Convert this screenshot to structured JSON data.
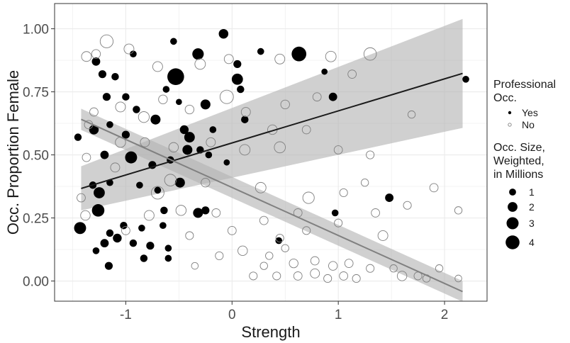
{
  "chart_data": {
    "type": "scatter",
    "xlabel": "Strength",
    "ylabel": "Occ. Proportion Female",
    "xlim": [
      -1.67,
      2.4
    ],
    "ylim": [
      -0.08,
      1.1
    ],
    "x_ticks": [
      -1,
      0,
      1,
      2
    ],
    "x_tick_labels": [
      "-1",
      "0",
      "1",
      "2"
    ],
    "y_ticks": [
      0,
      0.25,
      0.5,
      0.75,
      1
    ],
    "y_tick_labels": [
      "0.00",
      "0.25",
      "0.50",
      "0.75",
      "1.00"
    ],
    "minor_x_ticks": [
      -1.5,
      -0.5,
      0.5,
      1.5
    ],
    "minor_y_ticks": [
      0.125,
      0.375,
      0.625,
      0.875
    ],
    "grid": true,
    "legend_position": "right",
    "legend": {
      "group_title_line1": "Professional",
      "group_title_line2": "Occ.",
      "groups": [
        {
          "label": "Yes",
          "style": "filled"
        },
        {
          "label": "No",
          "style": "hollow"
        }
      ],
      "size_title_line1": "Occ. Size,",
      "size_title_line2": "Weighted,",
      "size_title_line3": "in Millions",
      "sizes": [
        {
          "label": "1",
          "value": 1
        },
        {
          "label": "2",
          "value": 2
        },
        {
          "label": "3",
          "value": 3
        },
        {
          "label": "4",
          "value": 4
        }
      ]
    },
    "colors": {
      "professional": "#000000",
      "non_professional": "#808080",
      "professional_line": "#1a1a1a",
      "non_professional_line": "#808080",
      "ribbon": "#b3b3b3",
      "grid": "#ebebeb",
      "panel_border": "#333333"
    },
    "fits": [
      {
        "group": "Yes",
        "x": [
          -1.42,
          2.17
        ],
        "y": [
          0.367,
          0.823
        ],
        "ci_lower": [
          0.28,
          0.607
        ],
        "ci_upper": [
          0.455,
          1.039
        ]
      },
      {
        "group": "No",
        "x": [
          -1.42,
          2.17
        ],
        "y": [
          0.641,
          -0.042
        ],
        "ci_lower": [
          0.599,
          -0.082
        ],
        "ci_upper": [
          0.683,
          0.0
        ]
      }
    ],
    "series": [
      {
        "name": "Yes",
        "points": [
          {
            "x": -1.28,
            "y": 0.87,
            "size": 0.6
          },
          {
            "x": -1.22,
            "y": 0.82,
            "size": 0.5
          },
          {
            "x": -1.1,
            "y": 0.81,
            "size": 0.4
          },
          {
            "x": -0.93,
            "y": 0.9,
            "size": 0.3
          },
          {
            "x": -0.55,
            "y": 0.95,
            "size": 0.3
          },
          {
            "x": -0.53,
            "y": 0.81,
            "size": 4.0
          },
          {
            "x": -0.32,
            "y": 0.9,
            "size": 1.5
          },
          {
            "x": -0.08,
            "y": 0.98,
            "size": 0.9
          },
          {
            "x": 0.05,
            "y": 0.86,
            "size": 0.5
          },
          {
            "x": 0.27,
            "y": 0.91,
            "size": 0.3
          },
          {
            "x": 0.63,
            "y": 0.9,
            "size": 2.9
          },
          {
            "x": 0.87,
            "y": 0.83,
            "size": 0.2
          },
          {
            "x": -1.18,
            "y": 0.73,
            "size": 0.5
          },
          {
            "x": -1.0,
            "y": 0.73,
            "size": 0.4
          },
          {
            "x": -0.62,
            "y": 0.76,
            "size": 0.3
          },
          {
            "x": -0.5,
            "y": 0.71,
            "size": 0.2
          },
          {
            "x": -0.25,
            "y": 0.7,
            "size": 1.0
          },
          {
            "x": 0.05,
            "y": 0.8,
            "size": 1.4
          },
          {
            "x": 0.08,
            "y": 0.76,
            "size": 0.4
          },
          {
            "x": 0.95,
            "y": 0.73,
            "size": 0.6
          },
          {
            "x": -1.45,
            "y": 0.57,
            "size": 0.4
          },
          {
            "x": -1.3,
            "y": 0.6,
            "size": 0.9
          },
          {
            "x": -1.15,
            "y": 0.62,
            "size": 0.3
          },
          {
            "x": -1.0,
            "y": 0.58,
            "size": 0.5
          },
          {
            "x": -0.9,
            "y": 0.68,
            "size": 0.4
          },
          {
            "x": -0.72,
            "y": 0.64,
            "size": 1.0
          },
          {
            "x": -0.45,
            "y": 0.6,
            "size": 0.7
          },
          {
            "x": -0.4,
            "y": 0.57,
            "size": 1.2
          },
          {
            "x": -0.18,
            "y": 0.6,
            "size": 0.3
          },
          {
            "x": 0.12,
            "y": 0.64,
            "size": 0.4
          },
          {
            "x": -1.2,
            "y": 0.5,
            "size": 0.6
          },
          {
            "x": -0.95,
            "y": 0.49,
            "size": 1.7
          },
          {
            "x": -0.75,
            "y": 0.46,
            "size": 0.5
          },
          {
            "x": -0.58,
            "y": 0.48,
            "size": 0.4
          },
          {
            "x": -0.42,
            "y": 0.52,
            "size": 1.0
          },
          {
            "x": -0.3,
            "y": 0.52,
            "size": 0.4
          },
          {
            "x": -0.22,
            "y": 0.5,
            "size": 0.3
          },
          {
            "x": -0.05,
            "y": 0.47,
            "size": 0.2
          },
          {
            "x": -1.31,
            "y": 0.38,
            "size": 0.4
          },
          {
            "x": -1.25,
            "y": 0.35,
            "size": 1.4
          },
          {
            "x": -1.15,
            "y": 0.39,
            "size": 0.3
          },
          {
            "x": -0.87,
            "y": 0.38,
            "size": 0.3
          },
          {
            "x": -0.7,
            "y": 0.36,
            "size": 0.3
          },
          {
            "x": -0.49,
            "y": 0.39,
            "size": 1.0
          },
          {
            "x": -1.26,
            "y": 0.28,
            "size": 1.9
          },
          {
            "x": -0.64,
            "y": 0.28,
            "size": 0.4
          },
          {
            "x": -0.32,
            "y": 0.27,
            "size": 1.0
          },
          {
            "x": -0.25,
            "y": 0.28,
            "size": 0.5
          },
          {
            "x": -1.43,
            "y": 0.21,
            "size": 1.7
          },
          {
            "x": -1.15,
            "y": 0.19,
            "size": 0.4
          },
          {
            "x": -1.02,
            "y": 0.22,
            "size": 0.4
          },
          {
            "x": -0.85,
            "y": 0.21,
            "size": 0.3
          },
          {
            "x": -0.65,
            "y": 0.22,
            "size": 0.3
          },
          {
            "x": -1.2,
            "y": 0.15,
            "size": 0.6
          },
          {
            "x": -1.08,
            "y": 0.17,
            "size": 0.7
          },
          {
            "x": -0.93,
            "y": 0.15,
            "size": 0.4
          },
          {
            "x": -0.77,
            "y": 0.14,
            "size": 0.5
          },
          {
            "x": -0.6,
            "y": 0.13,
            "size": 0.3
          },
          {
            "x": -1.28,
            "y": 0.12,
            "size": 0.3
          },
          {
            "x": -1.16,
            "y": 0.06,
            "size": 0.5
          },
          {
            "x": -0.83,
            "y": 0.09,
            "size": 0.4
          },
          {
            "x": -0.6,
            "y": 0.09,
            "size": 0.3
          },
          {
            "x": 1.48,
            "y": 0.33,
            "size": 0.6
          },
          {
            "x": 0.97,
            "y": 0.27,
            "size": 0.3
          },
          {
            "x": 0.44,
            "y": 0.16,
            "size": 0.3
          },
          {
            "x": 2.2,
            "y": 0.8,
            "size": 0.3
          }
        ]
      },
      {
        "name": "No",
        "points": [
          {
            "x": -1.18,
            "y": 0.95,
            "size": 2.1
          },
          {
            "x": -1.37,
            "y": 0.89,
            "size": 1.0
          },
          {
            "x": -1.28,
            "y": 0.9,
            "size": 0.7
          },
          {
            "x": -0.97,
            "y": 0.92,
            "size": 1.0
          },
          {
            "x": -0.7,
            "y": 0.85,
            "size": 1.0
          },
          {
            "x": -0.3,
            "y": 0.86,
            "size": 1.2
          },
          {
            "x": -0.03,
            "y": 0.88,
            "size": 0.8
          },
          {
            "x": 0.45,
            "y": 0.88,
            "size": 1.0
          },
          {
            "x": 0.93,
            "y": 0.89,
            "size": 1.2
          },
          {
            "x": 1.3,
            "y": 0.9,
            "size": 1.9
          },
          {
            "x": 1.13,
            "y": 0.82,
            "size": 0.6
          },
          {
            "x": -0.05,
            "y": 0.73,
            "size": 2.3
          },
          {
            "x": 0.13,
            "y": 0.67,
            "size": 0.8
          },
          {
            "x": 0.5,
            "y": 0.7,
            "size": 0.7
          },
          {
            "x": 0.8,
            "y": 0.73,
            "size": 0.6
          },
          {
            "x": -0.83,
            "y": 0.65,
            "size": 1.3
          },
          {
            "x": -0.65,
            "y": 0.72,
            "size": 0.7
          },
          {
            "x": 1.69,
            "y": 0.66,
            "size": 0.4
          },
          {
            "x": -1.3,
            "y": 0.67,
            "size": 0.6
          },
          {
            "x": -1.05,
            "y": 0.69,
            "size": 1.0
          },
          {
            "x": -0.4,
            "y": 0.68,
            "size": 0.7
          },
          {
            "x": -1.35,
            "y": 0.62,
            "size": 0.6
          },
          {
            "x": 0.38,
            "y": 0.6,
            "size": 0.9
          },
          {
            "x": 0.7,
            "y": 0.6,
            "size": 0.6
          },
          {
            "x": -1.05,
            "y": 0.55,
            "size": 1.1
          },
          {
            "x": -0.82,
            "y": 0.55,
            "size": 0.8
          },
          {
            "x": -0.55,
            "y": 0.53,
            "size": 0.9
          },
          {
            "x": -0.2,
            "y": 0.55,
            "size": 0.8
          },
          {
            "x": 0.12,
            "y": 0.52,
            "size": 1.2
          },
          {
            "x": 0.45,
            "y": 0.53,
            "size": 1.4
          },
          {
            "x": 1.0,
            "y": 0.52,
            "size": 0.6
          },
          {
            "x": 1.3,
            "y": 0.5,
            "size": 0.5
          },
          {
            "x": -1.37,
            "y": 0.49,
            "size": 0.6
          },
          {
            "x": -1.1,
            "y": 0.45,
            "size": 0.8
          },
          {
            "x": -0.58,
            "y": 0.4,
            "size": 1.6
          },
          {
            "x": -0.7,
            "y": 0.35,
            "size": 2.0
          },
          {
            "x": -0.25,
            "y": 0.39,
            "size": 0.7
          },
          {
            "x": 0.27,
            "y": 0.37,
            "size": 1.2
          },
          {
            "x": 0.72,
            "y": 0.33,
            "size": 1.5
          },
          {
            "x": 1.05,
            "y": 0.35,
            "size": 0.5
          },
          {
            "x": 1.25,
            "y": 0.39,
            "size": 0.4
          },
          {
            "x": 1.9,
            "y": 0.37,
            "size": 0.6
          },
          {
            "x": -1.42,
            "y": 0.33,
            "size": 0.6
          },
          {
            "x": -0.78,
            "y": 0.26,
            "size": 1.0
          },
          {
            "x": -0.48,
            "y": 0.28,
            "size": 1.1
          },
          {
            "x": -0.15,
            "y": 0.27,
            "size": 0.6
          },
          {
            "x": 0.3,
            "y": 0.24,
            "size": 0.6
          },
          {
            "x": 0.62,
            "y": 0.27,
            "size": 0.6
          },
          {
            "x": 1.0,
            "y": 0.23,
            "size": 0.5
          },
          {
            "x": 1.35,
            "y": 0.27,
            "size": 0.6
          },
          {
            "x": 1.65,
            "y": 0.3,
            "size": 0.5
          },
          {
            "x": 2.13,
            "y": 0.28,
            "size": 0.4
          },
          {
            "x": -1.38,
            "y": 0.26,
            "size": 0.9
          },
          {
            "x": -1.0,
            "y": 0.2,
            "size": 0.6
          },
          {
            "x": -0.4,
            "y": 0.18,
            "size": 0.5
          },
          {
            "x": 0.0,
            "y": 0.2,
            "size": 0.6
          },
          {
            "x": 0.45,
            "y": 0.17,
            "size": 0.5
          },
          {
            "x": 0.7,
            "y": 0.2,
            "size": 0.5
          },
          {
            "x": 1.42,
            "y": 0.18,
            "size": 1.0
          },
          {
            "x": -0.12,
            "y": 0.1,
            "size": 0.5
          },
          {
            "x": 0.1,
            "y": 0.12,
            "size": 0.9
          },
          {
            "x": 0.35,
            "y": 0.1,
            "size": 0.4
          },
          {
            "x": 0.58,
            "y": 0.07,
            "size": 0.7
          },
          {
            "x": 0.78,
            "y": 0.08,
            "size": 0.6
          },
          {
            "x": 0.95,
            "y": 0.06,
            "size": 0.7
          },
          {
            "x": 1.1,
            "y": 0.07,
            "size": 0.6
          },
          {
            "x": 1.3,
            "y": 0.05,
            "size": 0.5
          },
          {
            "x": 0.2,
            "y": 0.02,
            "size": 0.5
          },
          {
            "x": 0.42,
            "y": 0.02,
            "size": 0.5
          },
          {
            "x": 0.62,
            "y": 0.02,
            "size": 0.6
          },
          {
            "x": 0.78,
            "y": 0.03,
            "size": 0.8
          },
          {
            "x": 0.9,
            "y": 0.01,
            "size": 0.5
          },
          {
            "x": 1.05,
            "y": 0.02,
            "size": 0.6
          },
          {
            "x": 1.17,
            "y": 0.01,
            "size": 0.5
          },
          {
            "x": 1.6,
            "y": 0.02,
            "size": 0.9
          },
          {
            "x": 1.95,
            "y": 0.05,
            "size": 0.4
          },
          {
            "x": 2.13,
            "y": 0.01,
            "size": 0.3
          },
          {
            "x": 1.75,
            "y": 0.02,
            "size": 0.5
          },
          {
            "x": 1.83,
            "y": 0.01,
            "size": 0.4
          },
          {
            "x": 1.52,
            "y": 0.05,
            "size": 0.4
          },
          {
            "x": 0.3,
            "y": 0.06,
            "size": 0.4
          },
          {
            "x": -0.35,
            "y": 0.06,
            "size": 0.3
          },
          {
            "x": 0.5,
            "y": 0.13,
            "size": 0.4
          }
        ]
      }
    ]
  }
}
